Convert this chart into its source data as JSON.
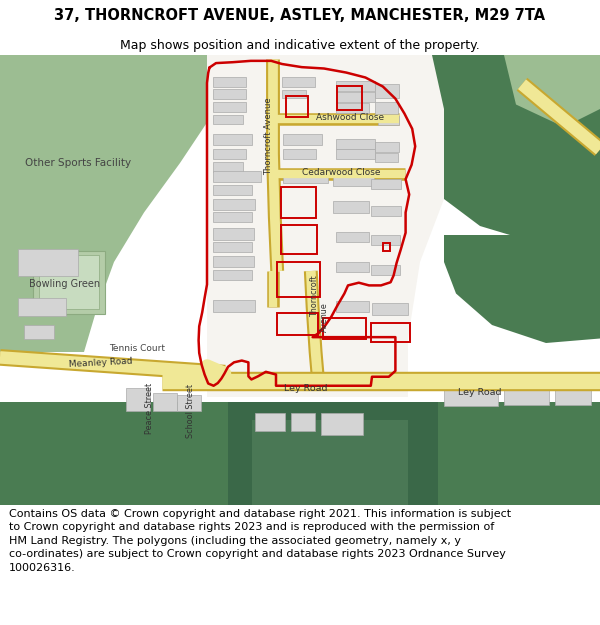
{
  "title": "37, THORNCROFT AVENUE, ASTLEY, MANCHESTER, M29 7TA",
  "subtitle": "Map shows position and indicative extent of the property.",
  "footer_line1": "Contains OS data © Crown copyright and database right 2021. This information is subject",
  "footer_line2": "to Crown copyright and database rights 2023 and is reproduced with the permission of",
  "footer_line3": "HM Land Registry. The polygons (including the associated geometry, namely x, y",
  "footer_line4": "co-ordinates) are subject to Crown copyright and database rights 2023 Ordnance Survey",
  "footer_line5": "100026316.",
  "title_fontsize": 10.5,
  "subtitle_fontsize": 9.0,
  "footer_fontsize": 8.0,
  "bg_color": "#ffffff",
  "map_bg": "#f2f0eb",
  "green_dark": "#4a7c52",
  "green_light": "#9cbd92",
  "green_bowl": "#b4cca8",
  "road_fill": "#f0e896",
  "road_edge": "#c8a830",
  "white_road": "#eeece8",
  "building_fill": "#d4d4d4",
  "building_edge": "#aaaaaa",
  "red_color": "#cc0000",
  "red_lw": 1.8
}
